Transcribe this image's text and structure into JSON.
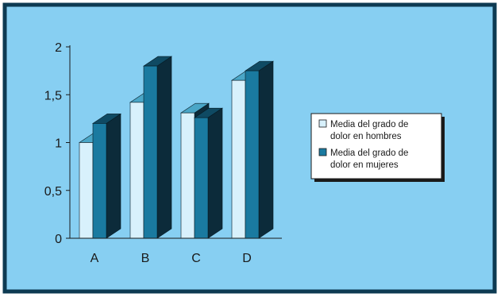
{
  "chart_data": {
    "type": "bar",
    "categories": [
      "A",
      "B",
      "C",
      "D"
    ],
    "series": [
      {
        "name": "Media del grado de dolor en hombres",
        "values": [
          1.0,
          1.42,
          1.31,
          1.65
        ]
      },
      {
        "name": "Media del grado de dolor en mujeres",
        "values": [
          1.2,
          1.8,
          1.26,
          1.75
        ]
      }
    ],
    "title": "",
    "xlabel": "",
    "ylabel": "",
    "ylim": [
      0,
      2
    ],
    "y_ticks": [
      "0",
      "0,5",
      "1",
      "1,5",
      "2"
    ],
    "grid": false,
    "legend_position": "right",
    "legend_lines": [
      [
        "Media del grado de",
        "dolor en hombres"
      ],
      [
        "Media del grado de",
        "dolor en mujeres"
      ]
    ],
    "colors": {
      "background": "#87cff2",
      "border": "#0d3a52",
      "series_fronts": [
        "#d8f1fc",
        "#1a7aa0"
      ],
      "series_sides": [
        "#0c2b3a",
        "#0c2b3a"
      ],
      "series_tops": [
        "#4aa6c7",
        "#0f4a63"
      ],
      "axis": "#1a1a1a",
      "legend_bg": "#ffffff",
      "legend_shadow": "#1a1a1a"
    }
  }
}
